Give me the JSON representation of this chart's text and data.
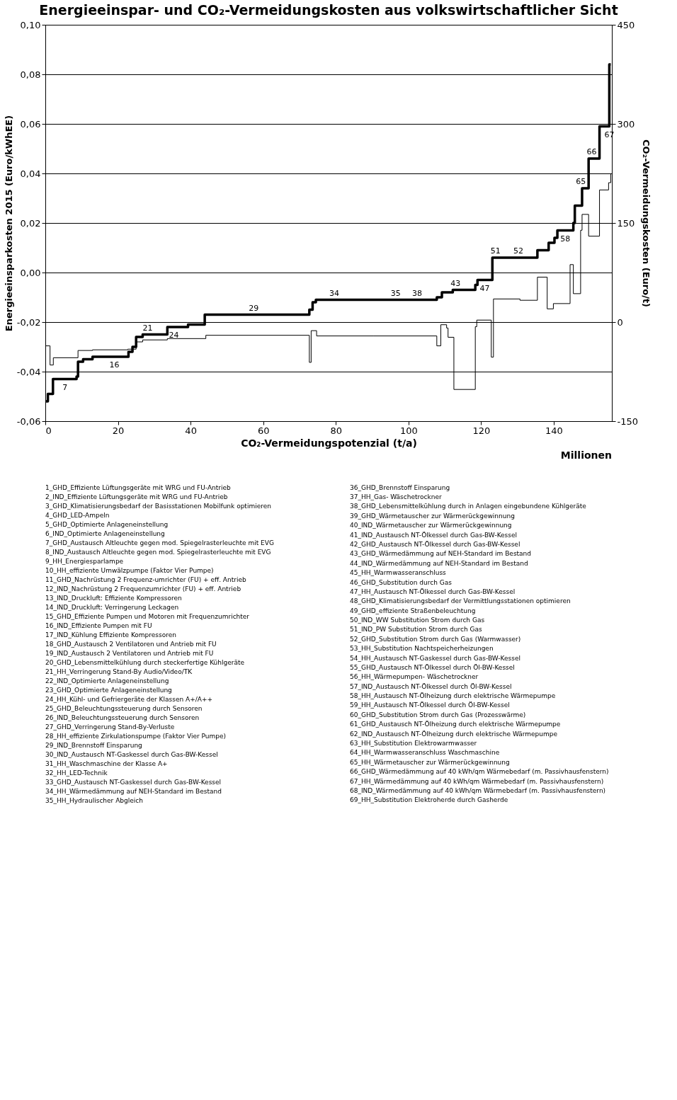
{
  "chart_data": {
    "type": "step",
    "title": "Energieeinspar- und CO₂-Vermeidungskosten aus volkswirtschaftlicher Sicht",
    "xlabel": "CO₂-Vermeidungspotenzial (t/a)",
    "ylabel": "Energieeinsparkosten 2015 (Euro/kWhEE)",
    "y2label": "CO₂-Vermeidungskosten (Euro/t)",
    "xlim": [
      0,
      156
    ],
    "xticks": [
      0,
      20,
      40,
      60,
      80,
      100,
      120,
      140
    ],
    "ylim": [
      -0.06,
      0.1
    ],
    "yticks": [
      {
        "value": -0.06,
        "label": "-0,06"
      },
      {
        "value": -0.04,
        "label": "-0,04"
      },
      {
        "value": -0.02,
        "label": "-0,02"
      },
      {
        "value": 0,
        "label": "0,00"
      },
      {
        "value": 0.02,
        "label": "0,02"
      },
      {
        "value": 0.04,
        "label": "0,04"
      },
      {
        "value": 0.06,
        "label": "0,06"
      },
      {
        "value": 0.08,
        "label": "0,08"
      },
      {
        "value": 0.1,
        "label": "0,10"
      }
    ],
    "y2lim": [
      -150,
      450
    ],
    "y2ticks": [
      -150,
      0,
      150,
      300,
      450
    ],
    "grid": "y",
    "series": [
      {
        "color": "#000000",
        "line_style": "solid",
        "x": [
          0,
          0.7,
          2.1,
          8.6,
          9.0,
          10.4,
          13.0,
          22.9,
          24.0,
          25.0,
          26.8,
          33.6,
          39.3,
          41.1,
          43.9,
          72.7,
          73.6,
          74.5,
          107.8,
          109.2,
          112.2,
          118.4,
          119.0,
          123.1,
          135.5,
          138.6,
          140.2,
          141.0,
          145.4,
          145.8,
          147.8,
          149.6,
          152.6,
          155.3,
          155.7
        ],
        "values": [
          -0.052,
          -0.049,
          -0.043,
          -0.042,
          -0.036,
          -0.035,
          -0.034,
          -0.032,
          -0.03,
          -0.026,
          -0.025,
          -0.022,
          -0.021,
          -0.021,
          -0.017,
          -0.015,
          -0.012,
          -0.011,
          -0.01,
          -0.008,
          -0.007,
          -0.005,
          -0.003,
          0.006,
          0.009,
          0.012,
          0.014,
          0.017,
          0.02,
          0.027,
          0.034,
          0.046,
          0.059,
          0.084,
          0.084
        ]
      },
      {
        "color": "#000000",
        "line_style": "solid",
        "axis": "y2",
        "x": [
          0,
          1.3,
          2.2,
          9.0,
          13.0,
          22.7,
          25.0,
          26.8,
          33.6,
          44.2,
          72.7,
          73.2,
          74.7,
          90.3,
          107.8,
          108.9,
          110.5,
          110.9,
          112.5,
          118.4,
          118.8,
          122.8,
          123.4,
          130.7,
          135.5,
          138.2,
          139.9,
          144.5,
          145.4,
          147.4,
          147.8,
          149.6,
          152.6,
          155.1,
          155.7
        ],
        "values": [
          -36,
          -65,
          -54,
          -43,
          -42,
          -41,
          -30,
          -27,
          -25,
          -20,
          -61,
          -13,
          -21,
          -21,
          -36,
          -4,
          -9,
          -23,
          -102,
          -7,
          3,
          -53,
          35,
          33,
          68,
          20,
          28,
          87,
          43,
          139,
          163,
          130,
          200,
          211,
          225
        ]
      }
    ],
    "annotations": [
      "Millionen",
      {
        "text": "7",
        "x": 5.4,
        "y": -0.043
      },
      {
        "text": "16",
        "x": 19.0,
        "y": -0.034
      },
      {
        "text": "21",
        "x": 30.3,
        "y": -0.025
      },
      {
        "text": "24",
        "x": 35.4,
        "y": -0.022
      },
      {
        "text": "29",
        "x": 59.5,
        "y": -0.017
      },
      {
        "text": "34",
        "x": 81.7,
        "y": -0.011
      },
      {
        "text": "35",
        "x": 98.6,
        "y": -0.011
      },
      {
        "text": "38",
        "x": 104.5,
        "y": -0.011
      },
      {
        "text": "43",
        "x": 115.1,
        "y": -0.007
      },
      {
        "text": "47",
        "x": 121.0,
        "y": -0.003
      },
      {
        "text": "51",
        "x": 126.1,
        "y": 0.006
      },
      {
        "text": "52",
        "x": 132.4,
        "y": 0.006
      },
      {
        "text": "58",
        "x": 143.2,
        "y": 0.017
      },
      {
        "text": "65",
        "x": 149.6,
        "y": 0.034
      },
      {
        "text": "66",
        "x": 152.6,
        "y": 0.046
      },
      {
        "text": "67",
        "x": 155.3,
        "y": 0.059
      },
      "1_GHD_Effiziente Lüftungsgeräte mit WRG und FU-Antrieb",
      "2_IND_Effiziente Lüftungsgeräte mit WRG und FU-Antrieb",
      "3_GHD_Klimatisierungsbedarf der Basisstationen Mobilfunk optimieren",
      "4_GHD_LED-Ampeln",
      "5_GHD_Optimierte Anlageneinstellung",
      "6_IND_Optimierte Anlageneinstellung",
      "7_GHD_Austausch Altleuchte gegen mod. Spiegelrasterleuchte mit EVG",
      "8_IND_Austausch Altleuchte gegen mod. Spiegelrasterleuchte mit EVG",
      "9_HH_Energiesparlampe",
      "10_HH_effiziente Umwälzpumpe (Faktor Vier Pumpe)",
      "11_GHD_Nachrüstung 2 Frequenz-umrichter (FU) + eff. Antrieb",
      "12_IND_Nachrüstung 2 Frequenzumrichter (FU) + eff. Antrieb",
      "13_IND_Druckluft: Effiziente Kompressoren",
      "14_IND_Druckluft: Verringerung Leckagen",
      "15_GHD_Effiziente Pumpen und Motoren mit Frequenzumrichter",
      "16_IND_Effiziente Pumpen mit FU",
      "17_IND_Kühlung Effiziente Kompressoren",
      "18_GHD_Austausch 2 Ventilatoren und Antrieb mit FU",
      "19_IND_Austausch 2 Ventilatoren und Antrieb mit FU",
      "20_GHD_Lebensmittelkühlung durch steckerfertige Kühlgeräte",
      "21_HH_Verringerung Stand-By Audio/Video/TK",
      "22_IND_Optimierte Anlageneinstellung",
      "23_GHD_Optimierte Anlageneinstellung",
      "24_HH_Kühl- und Gefriergeräte der Klassen A+/A++",
      "25_GHD_Beleuchtungssteuerung durch Sensoren",
      "26_IND_Beleuchtungssteuerung durch Sensoren",
      "27_GHD_Verringerung Stand-By-Verluste",
      "28_HH_effiziente Zirkulationspumpe (Faktor Vier Pumpe)",
      "29_IND_Brennstoff Einsparung",
      "30_IND_Austausch NT-Gaskessel durch Gas-BW-Kessel",
      "31_HH_Waschmaschine der Klasse A+",
      "32_HH_LED-Technik",
      "33_GHD_Austausch NT-Gaskessel durch Gas-BW-Kessel",
      "34_HH_Wärmedämmung auf NEH-Standard im Bestand",
      "35_HH_Hydraulischer Abgleich",
      "36_GHD_Brennstoff Einsparung",
      "37_HH_Gas- Wäschetrockner",
      "38_GHD_Lebensmittelkühlung durch in Anlagen eingebundene Kühlgeräte",
      "39_GHD_Wärmetauscher zur Wärmerückgewinnung",
      "40_IND_Wärmetauscher zur Wärmerückgewinnung",
      "41_IND_Austausch NT-Ölkessel durch Gas-BW-Kessel",
      "42_GHD_Austausch NT-Ölkessel durch Gas-BW-Kessel",
      "43_GHD_Wärmedämmung auf NEH-Standard im Bestand",
      "44_IND_Wärmedämmung auf NEH-Standard im Bestand",
      "45_HH_Warmwasseranschluss",
      "46_GHD_Substitution durch Gas",
      "47_HH_Austausch NT-Ölkessel durch Gas-BW-Kessel",
      "48_GHD_Klimatisierungsbedarf der Vermittlungsstationen optimieren",
      "49_GHD_effiziente Straßenbeleuchtung",
      "50_IND_WW Substitution Strom durch Gas",
      "51_IND_PW Substitution Strom durch Gas",
      "52_GHD_Substitution Strom durch Gas (Warmwasser)",
      "53_HH_Substitution Nachtspeicherheizungen",
      "54_HH_Austausch NT-Gaskessel durch Gas-BW-Kessel",
      "55_GHD_Austausch NT-Ölkessel durch Öl-BW-Kessel",
      "56_HH_Wärmepumpen- Wäschetrockner",
      "57_IND_Austausch NT-Ölkessel durch Öl-BW-Kessel",
      "58_HH_Austausch NT-Ölheizung durch elektrische Wärmepumpe",
      "59_HH_Austausch NT-Ölkessel durch Öl-BW-Kessel",
      "60_GHD_Substitution Strom durch Gas (Prozesswärme)",
      "61_GHD_Austausch NT-Ölheizung durch elektrische Wärmepumpe",
      "62_IND_Austausch NT-Ölheizung durch elektrische Wärmepumpe",
      "63_HH_Substitution Elektrowarmwasser",
      "64_HH_Warmwasseranschluss Waschmaschine",
      "65_HH_Wärmetauscher zur Wärmerückgewinnung",
      "66_GHD_Wärmedämmung auf 40 kWh/qm Wärmebedarf (m. Passivhausfenstern)",
      "67_HH_Wärmedämmung auf 40 kWh/qm Wärmebedarf (m. Passivhausfenstern)",
      "68_IND_Wärmedämmung auf 40 kWh/qm Wärmebedarf (m. Passivhausfenstern)",
      "69_HH_Substitution Elektroherde durch Gasherde"
    ]
  }
}
